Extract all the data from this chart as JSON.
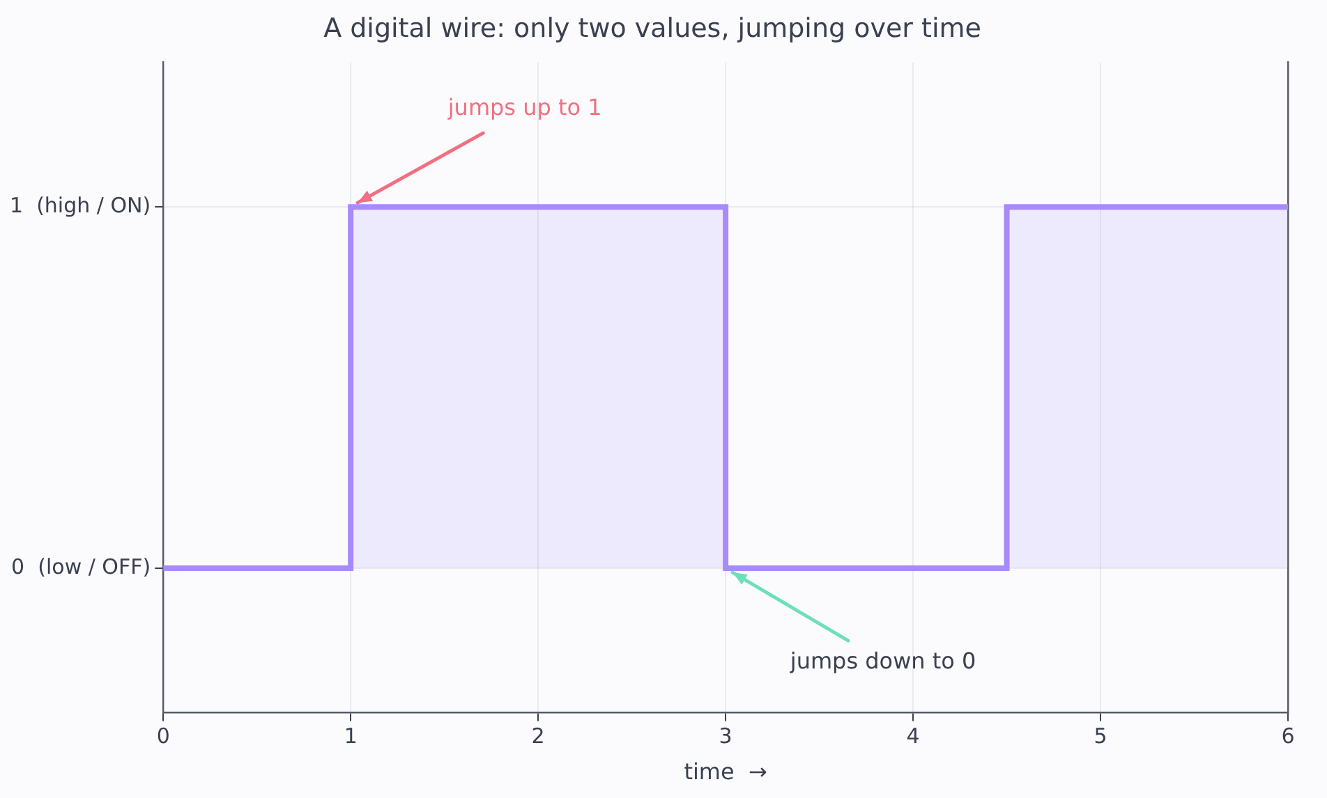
{
  "chart_data": {
    "type": "step",
    "title": "A digital wire: only two values, jumping over time",
    "xlabel": "time  →",
    "x": [
      0,
      1,
      3,
      4.5,
      6
    ],
    "series": [
      {
        "color": "#a78bfa",
        "values": [
          0,
          1,
          0,
          1,
          1
        ]
      }
    ],
    "xlim": [
      0,
      6
    ],
    "xticks": [
      0,
      1,
      2,
      3,
      4,
      5,
      6
    ],
    "ylim": [
      -0.4,
      1.4
    ],
    "yticks": [
      {
        "value": 0,
        "label": "0  (low / OFF)"
      },
      {
        "value": 1,
        "label": "1  (high / ON)"
      }
    ],
    "grid": true,
    "legend": false,
    "annotations": [
      {
        "text": "jumps up to 1",
        "x": 1,
        "y": 1
      },
      {
        "text": "jumps down to 0",
        "x": 3,
        "y": 0
      }
    ]
  }
}
